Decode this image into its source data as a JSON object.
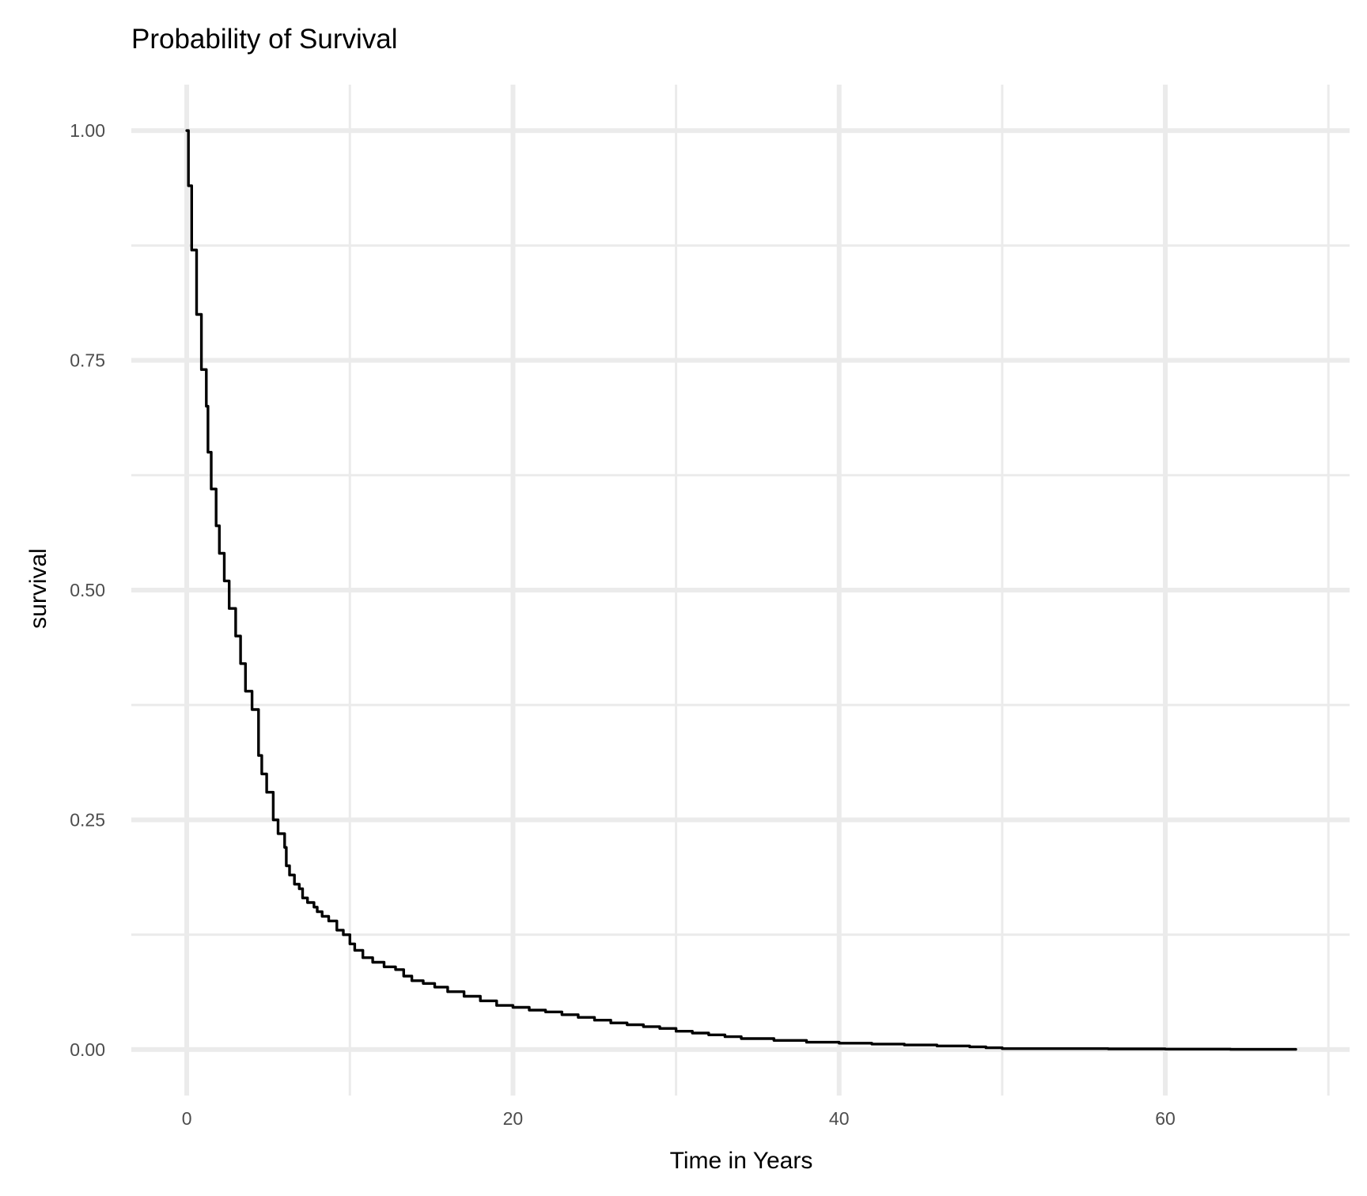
{
  "chart_data": {
    "type": "line",
    "title": "Probability of Survival",
    "xlabel": "Time in Years",
    "ylabel": "survival",
    "xlim": [
      -3.4,
      71.3
    ],
    "ylim": [
      -0.05,
      1.05
    ],
    "x_ticks": [
      0,
      20,
      40,
      60
    ],
    "x_minor_ticks": [
      10,
      30,
      50,
      70
    ],
    "y_ticks": [
      0.0,
      0.25,
      0.5,
      0.75,
      1.0
    ],
    "y_tick_labels": [
      "0.00",
      "0.25",
      "0.50",
      "0.75",
      "1.00"
    ],
    "y_minor_ticks": [
      0.125,
      0.375,
      0.625,
      0.875
    ],
    "grid": true,
    "colors": {
      "line": "#000000",
      "grid": "#ebebeb",
      "background": "#ffffff"
    },
    "series": [
      {
        "step": true,
        "x": [
          0,
          0.1,
          0.3,
          0.6,
          0.9,
          1.2,
          1.3,
          1.5,
          1.8,
          2.0,
          2.3,
          2.6,
          3.0,
          3.3,
          3.6,
          4.0,
          4.4,
          4.6,
          4.9,
          5.3,
          5.6,
          6.0,
          6.1,
          6.3,
          6.6,
          6.9,
          7.1,
          7.4,
          7.8,
          8.0,
          8.3,
          8.7,
          9.2,
          9.6,
          10.0,
          10.3,
          10.8,
          11.4,
          12.1,
          12.8,
          13.3,
          13.8,
          14.5,
          15.2,
          16.0,
          17.0,
          18.0,
          19.0,
          20.0,
          21.0,
          22.0,
          23.0,
          24.0,
          25.0,
          26.0,
          27.0,
          28.0,
          29.0,
          30.0,
          31.0,
          32.0,
          33.0,
          34.0,
          36.0,
          38.0,
          40.0,
          42.0,
          44.0,
          46.0,
          48.0,
          49.0,
          50.0,
          53.0,
          56.5,
          60.0,
          64.0,
          68.0
        ],
        "y": [
          1.0,
          0.94,
          0.87,
          0.8,
          0.74,
          0.7,
          0.65,
          0.61,
          0.57,
          0.54,
          0.51,
          0.48,
          0.45,
          0.42,
          0.39,
          0.37,
          0.32,
          0.3,
          0.28,
          0.25,
          0.235,
          0.22,
          0.2,
          0.19,
          0.18,
          0.175,
          0.165,
          0.16,
          0.155,
          0.15,
          0.145,
          0.14,
          0.13,
          0.125,
          0.115,
          0.108,
          0.1,
          0.095,
          0.09,
          0.087,
          0.08,
          0.075,
          0.072,
          0.068,
          0.063,
          0.058,
          0.053,
          0.048,
          0.046,
          0.043,
          0.041,
          0.038,
          0.035,
          0.032,
          0.029,
          0.027,
          0.025,
          0.023,
          0.02,
          0.018,
          0.016,
          0.014,
          0.012,
          0.01,
          0.008,
          0.007,
          0.006,
          0.005,
          0.004,
          0.003,
          0.002,
          0.001,
          0.001,
          0.0008,
          0.0005,
          0.0003,
          0.0003
        ]
      }
    ]
  }
}
